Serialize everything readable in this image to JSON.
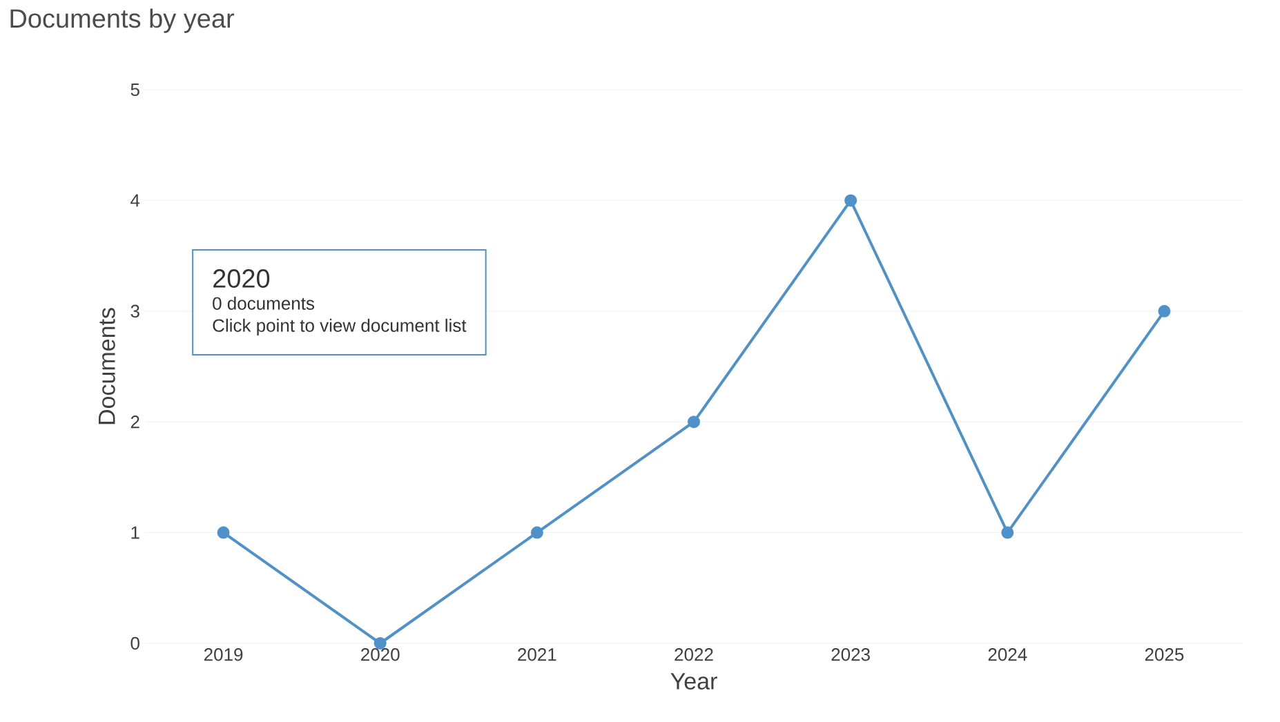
{
  "chart_data": {
    "type": "line",
    "title": "Documents by year",
    "xlabel": "Year",
    "ylabel": "Documents",
    "categories": [
      "2019",
      "2020",
      "2021",
      "2022",
      "2023",
      "2024",
      "2025"
    ],
    "series": [
      {
        "color": "#4f92c9",
        "values": [
          1,
          0,
          1,
          2,
          4,
          1,
          3
        ]
      }
    ],
    "ylim": [
      0,
      5
    ],
    "yticks": [
      0,
      1,
      2,
      3,
      4,
      5
    ],
    "grid": "y",
    "marker": "circle",
    "line_style": "solid",
    "annotations": [
      "2020",
      "0 documents",
      "Click point to view document list"
    ]
  }
}
